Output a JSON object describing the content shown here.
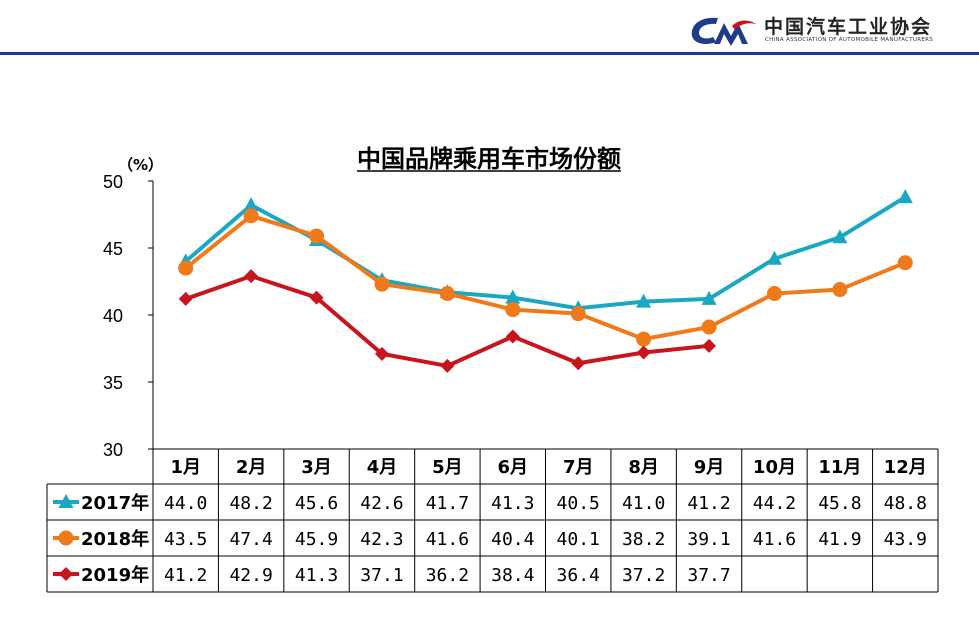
{
  "header": {
    "org_name_cn": "中国汽车工业协会",
    "org_name_en": "CHINA ASSOCIATION OF AUTOMOBILE MANUFACTURERS",
    "logo_icon": "caam-logo-icon",
    "rule_color": "#1f3c88"
  },
  "chart_data": {
    "type": "line",
    "title": "中国品牌乘用车市场份额",
    "unit_label": "（%）",
    "ylim": [
      30,
      50
    ],
    "yticks": [
      "30",
      "35",
      "40",
      "45",
      "50"
    ],
    "grid": false,
    "legend": "data-table",
    "categories": [
      "1月",
      "2月",
      "3月",
      "4月",
      "5月",
      "6月",
      "7月",
      "8月",
      "9月",
      "10月",
      "11月",
      "12月"
    ],
    "series": [
      {
        "name": "2017年",
        "color": "#1aa7c4",
        "marker": "triangle",
        "values": [
          44.0,
          48.2,
          45.6,
          42.6,
          41.7,
          41.3,
          40.5,
          41.0,
          41.2,
          44.2,
          45.8,
          48.8
        ],
        "labels": [
          "44.0",
          "48.2",
          "45.6",
          "42.6",
          "41.7",
          "41.3",
          "40.5",
          "41.0",
          "41.2",
          "44.2",
          "45.8",
          "48.8"
        ]
      },
      {
        "name": "2018年",
        "color": "#f07a1a",
        "marker": "circle",
        "values": [
          43.5,
          47.4,
          45.9,
          42.3,
          41.6,
          40.4,
          40.1,
          38.2,
          39.1,
          41.6,
          41.9,
          43.9
        ],
        "labels": [
          "43.5",
          "47.4",
          "45.9",
          "42.3",
          "41.6",
          "40.4",
          "40.1",
          "38.2",
          "39.1",
          "41.6",
          "41.9",
          "43.9"
        ]
      },
      {
        "name": "2019年",
        "color": "#c8141c",
        "marker": "diamond",
        "values": [
          41.2,
          42.9,
          41.3,
          37.1,
          36.2,
          38.4,
          36.4,
          37.2,
          37.7,
          null,
          null,
          null
        ],
        "labels": [
          "41.2",
          "42.9",
          "41.3",
          "37.1",
          "36.2",
          "38.4",
          "36.4",
          "37.2",
          "37.7",
          "",
          "",
          ""
        ]
      }
    ]
  }
}
